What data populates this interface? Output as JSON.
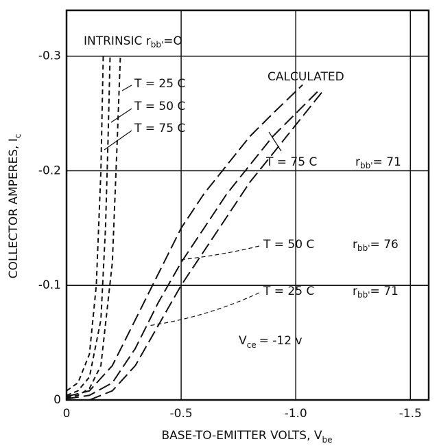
{
  "chart_data": {
    "type": "line",
    "xlabel": "BASE-TO-EMITTER VOLTS, V",
    "xlabel_sub": "be",
    "ylabel": "COLLECTOR AMPERES, I",
    "ylabel_sub": "c",
    "xlim": [
      0,
      -1.58
    ],
    "xticks": [
      0,
      -0.5,
      {
        "value": -1,
        "label": "-1.0"
      },
      -1.5
    ],
    "ylim": [
      0,
      -0.34
    ],
    "yticks": [
      0,
      -0.1,
      -0.2,
      -0.3
    ],
    "grid": true,
    "series": [
      {
        "color": "#111",
        "dash": "short",
        "x": [
          0,
          -0.05,
          -0.1,
          -0.13,
          -0.15,
          -0.16
        ],
        "values": [
          -0.008,
          -0.015,
          -0.04,
          -0.1,
          -0.2,
          -0.3
        ]
      },
      {
        "color": "#111",
        "dash": "short",
        "x": [
          0,
          -0.05,
          -0.1,
          -0.15,
          -0.17,
          -0.18,
          -0.19
        ],
        "values": [
          -0.004,
          -0.008,
          -0.02,
          -0.07,
          -0.15,
          -0.22,
          -0.3
        ]
      },
      {
        "color": "#111",
        "dash": "short",
        "x": [
          0,
          -0.05,
          -0.1,
          -0.15,
          -0.2,
          -0.22,
          -0.235
        ],
        "values": [
          -0.002,
          -0.004,
          -0.01,
          -0.03,
          -0.12,
          -0.22,
          -0.3
        ]
      },
      {
        "color": "#111",
        "dash": "long",
        "x": [
          0,
          -0.1,
          -0.2,
          -0.3,
          -0.4,
          -0.5,
          -0.6,
          -0.7,
          -0.8,
          -0.9,
          -1.03
        ],
        "values": [
          -0.003,
          -0.008,
          -0.03,
          -0.07,
          -0.11,
          -0.15,
          -0.18,
          -0.205,
          -0.23,
          -0.25,
          -0.275
        ]
      },
      {
        "color": "#111",
        "dash": "long",
        "x": [
          0,
          -0.1,
          -0.2,
          -0.3,
          -0.4,
          -0.5,
          -0.6,
          -0.7,
          -0.8,
          -0.9,
          -1.0,
          -1.1
        ],
        "values": [
          -0.001,
          -0.004,
          -0.015,
          -0.045,
          -0.085,
          -0.12,
          -0.15,
          -0.18,
          -0.205,
          -0.23,
          -0.25,
          -0.27
        ]
      },
      {
        "color": "#111",
        "dash": "long",
        "x": [
          -0.1,
          -0.2,
          -0.3,
          -0.4,
          -0.5,
          -0.6,
          -0.7,
          -0.8,
          -0.9,
          -1.0,
          -1.12
        ],
        "values": [
          0,
          -0.008,
          -0.03,
          -0.065,
          -0.1,
          -0.13,
          -0.16,
          -0.19,
          -0.215,
          -0.24,
          -0.27
        ]
      }
    ],
    "annotations": [
      "INTRINSIC r",
      "bb'",
      "=O",
      "T = 25 C",
      "T = 50 C",
      "T = 75 C",
      "CALCULATED",
      "T = 75 C",
      "r",
      "bb'",
      "= 71",
      "T = 50 C",
      "r",
      "bb'",
      "= 76",
      "T = 25 C",
      "r",
      "bb'",
      "= 71",
      "V",
      "ce",
      "= -12 v"
    ]
  }
}
